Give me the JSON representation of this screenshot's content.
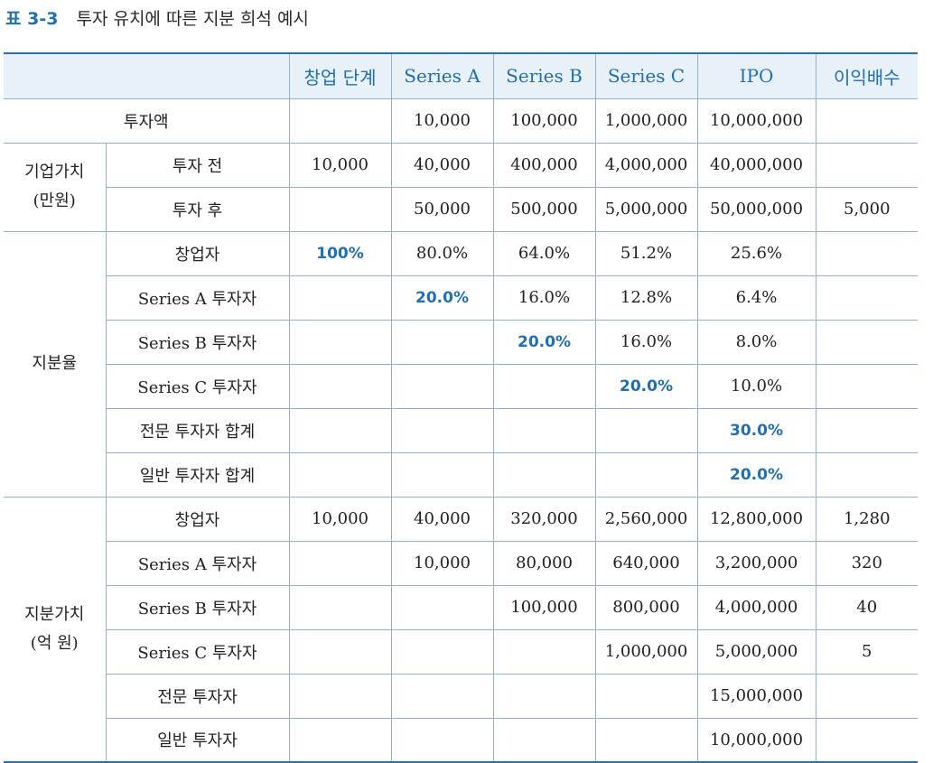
{
  "caption": {
    "number": "표 3-3",
    "title": "투자 유치에 따른 지분 희석 예시"
  },
  "header": [
    "창업 단계",
    "Series A",
    "Series B",
    "Series C",
    "IPO",
    "이익배수"
  ],
  "investment": {
    "label": "투자액",
    "cells": [
      "",
      "10,000",
      "100,000",
      "1,000,000",
      "10,000,000",
      ""
    ]
  },
  "valuation": {
    "group_line1": "기업가치",
    "group_line2": "(만원)",
    "rows": [
      {
        "label": "투자 전",
        "cells": [
          "10,000",
          "40,000",
          "400,000",
          "4,000,000",
          "40,000,000",
          ""
        ]
      },
      {
        "label": "투자 후",
        "cells": [
          "",
          "50,000",
          "500,000",
          "5,000,000",
          "50,000,000",
          "5,000"
        ]
      }
    ]
  },
  "ownership": {
    "group": "지분율",
    "rows": [
      {
        "label": "창업자",
        "cells": [
          "100%",
          "80.0%",
          "64.0%",
          "51.2%",
          "25.6%",
          ""
        ],
        "highlight": 0
      },
      {
        "label": "Series A 투자자",
        "cells": [
          "",
          "20.0%",
          "16.0%",
          "12.8%",
          "6.4%",
          ""
        ],
        "highlight": 1
      },
      {
        "label": "Series B 투자자",
        "cells": [
          "",
          "",
          "20.0%",
          "16.0%",
          "8.0%",
          ""
        ],
        "highlight": 2
      },
      {
        "label": "Series C 투자자",
        "cells": [
          "",
          "",
          "",
          "20.0%",
          "10.0%",
          ""
        ],
        "highlight": 3
      },
      {
        "label": "전문 투자자 합계",
        "cells": [
          "",
          "",
          "",
          "",
          "30.0%",
          ""
        ],
        "highlight": 4
      },
      {
        "label": "일반 투자자 합계",
        "cells": [
          "",
          "",
          "",
          "",
          "20.0%",
          ""
        ],
        "highlight": 4
      }
    ]
  },
  "equity_value": {
    "group_line1": "지분가치",
    "group_line2": "(억 원)",
    "rows": [
      {
        "label": "창업자",
        "cells": [
          "10,000",
          "40,000",
          "320,000",
          "2,560,000",
          "12,800,000",
          "1,280"
        ]
      },
      {
        "label": "Series A 투자자",
        "cells": [
          "",
          "10,000",
          "80,000",
          "640,000",
          "3,200,000",
          "320"
        ]
      },
      {
        "label": "Series B 투자자",
        "cells": [
          "",
          "",
          "100,000",
          "800,000",
          "4,000,000",
          "40"
        ]
      },
      {
        "label": "Series C 투자자",
        "cells": [
          "",
          "",
          "",
          "1,000,000",
          "5,000,000",
          "5"
        ]
      },
      {
        "label": "전문 투자자",
        "cells": [
          "",
          "",
          "",
          "",
          "15,000,000",
          ""
        ]
      },
      {
        "label": "일반 투자자",
        "cells": [
          "",
          "",
          "",
          "",
          "10,000,000",
          ""
        ]
      }
    ]
  },
  "colors": {
    "accent": "#1f6fb5",
    "header_bg": "#e8f0f8",
    "border": "#8fb3d0"
  }
}
